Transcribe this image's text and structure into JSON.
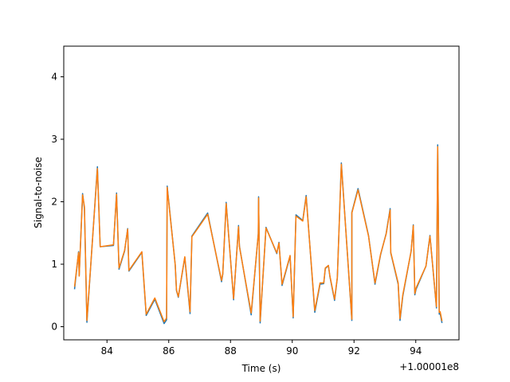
{
  "chart_data": {
    "type": "line",
    "title": "",
    "xlabel": "Time (s)",
    "ylabel": "Signal-to-noise",
    "x_offset_label": "+1.00001e8",
    "xlim": [
      82.6,
      95.4
    ],
    "ylim": [
      -0.21,
      4.49
    ],
    "x_ticks": [
      84,
      86,
      88,
      90,
      92,
      94
    ],
    "x_tick_labels": [
      "84",
      "86",
      "88",
      "90",
      "92",
      "94"
    ],
    "y_ticks": [
      0,
      1,
      2,
      3,
      4
    ],
    "y_tick_labels": [
      "0",
      "1",
      "2",
      "3",
      "4"
    ],
    "grid": false,
    "legend": false,
    "series": [
      {
        "color": "#1f77b4",
        "x": [
          82.95,
          83.08,
          83.1,
          83.21,
          83.27,
          83.35,
          83.69,
          83.78,
          84.21,
          84.31,
          84.39,
          84.57,
          84.67,
          84.71,
          85.13,
          85.27,
          85.55,
          85.85,
          85.93,
          85.95,
          86.21,
          86.25,
          86.31,
          86.52,
          86.69,
          86.75,
          87.26,
          87.71,
          87.75,
          87.86,
          88.1,
          88.26,
          88.29,
          88.67,
          88.9,
          88.91,
          88.96,
          89.15,
          89.5,
          89.57,
          89.67,
          89.93,
          90.03,
          90.12,
          90.34,
          90.45,
          90.73,
          90.9,
          91.02,
          91.07,
          91.17,
          91.22,
          91.37,
          91.46,
          91.59,
          91.93,
          91.93,
          92.13,
          92.47,
          92.68,
          92.86,
          93.04,
          93.17,
          93.19,
          93.43,
          93.49,
          93.58,
          93.85,
          93.92,
          93.97,
          94.01,
          94.33,
          94.46,
          94.67,
          94.71,
          94.76,
          94.79,
          94.85
        ],
        "y": [
          0.6,
          1.2,
          0.82,
          2.13,
          1.89,
          0.07,
          2.56,
          1.28,
          1.3,
          2.14,
          0.92,
          1.21,
          1.57,
          0.89,
          1.19,
          0.18,
          0.44,
          0.05,
          0.11,
          2.25,
          0.99,
          0.58,
          0.47,
          1.11,
          0.21,
          1.45,
          1.82,
          0.72,
          0.84,
          1.99,
          0.43,
          1.62,
          1.29,
          0.19,
          1.49,
          2.08,
          0.06,
          1.59,
          1.17,
          1.35,
          0.66,
          1.13,
          0.14,
          1.79,
          1.7,
          2.1,
          0.23,
          0.68,
          0.69,
          0.93,
          0.98,
          0.8,
          0.42,
          0.78,
          2.62,
          0.1,
          1.83,
          2.21,
          1.46,
          0.68,
          1.15,
          1.49,
          1.89,
          1.18,
          0.68,
          0.1,
          0.49,
          1.21,
          1.63,
          0.51,
          0.6,
          0.97,
          1.46,
          0.3,
          2.91,
          0.2,
          0.21,
          0.06
        ]
      },
      {
        "color": "#ff7f0e",
        "x": [
          82.95,
          83.08,
          83.1,
          83.21,
          83.27,
          83.35,
          83.69,
          83.78,
          84.21,
          84.31,
          84.39,
          84.57,
          84.67,
          84.71,
          85.13,
          85.27,
          85.55,
          85.85,
          85.93,
          85.95,
          86.21,
          86.25,
          86.31,
          86.52,
          86.69,
          86.75,
          87.26,
          87.71,
          87.75,
          87.86,
          88.1,
          88.26,
          88.29,
          88.67,
          88.9,
          88.91,
          88.96,
          89.15,
          89.5,
          89.57,
          89.67,
          89.93,
          90.03,
          90.12,
          90.34,
          90.45,
          90.73,
          90.9,
          91.02,
          91.07,
          91.17,
          91.22,
          91.37,
          91.46,
          91.59,
          91.93,
          91.93,
          92.13,
          92.47,
          92.68,
          92.86,
          93.04,
          93.17,
          93.19,
          93.43,
          93.49,
          93.58,
          93.85,
          93.92,
          93.97,
          94.01,
          94.33,
          94.46,
          94.67,
          94.71,
          94.76,
          94.79,
          94.85
        ],
        "y": [
          0.64,
          1.19,
          0.81,
          2.11,
          1.92,
          0.1,
          2.53,
          1.28,
          1.31,
          2.12,
          0.94,
          1.22,
          1.56,
          0.9,
          1.2,
          0.2,
          0.46,
          0.08,
          0.14,
          2.23,
          0.99,
          0.59,
          0.48,
          1.12,
          0.24,
          1.44,
          1.8,
          0.74,
          0.85,
          1.97,
          0.45,
          1.6,
          1.28,
          0.22,
          1.48,
          2.06,
          0.09,
          1.58,
          1.18,
          1.34,
          0.68,
          1.14,
          0.16,
          1.77,
          1.69,
          2.08,
          0.26,
          0.7,
          0.7,
          0.94,
          0.98,
          0.81,
          0.44,
          0.79,
          2.6,
          0.12,
          1.82,
          2.19,
          1.45,
          0.7,
          1.16,
          1.48,
          1.87,
          1.19,
          0.7,
          0.13,
          0.51,
          1.21,
          1.62,
          0.53,
          0.62,
          0.97,
          1.45,
          0.32,
          2.88,
          0.23,
          0.24,
          0.09
        ]
      }
    ]
  }
}
